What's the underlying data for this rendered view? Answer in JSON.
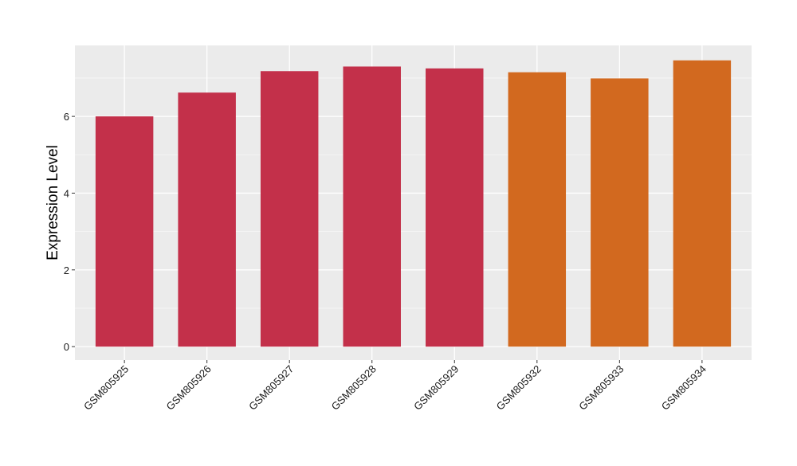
{
  "chart_data": {
    "type": "bar",
    "title": "",
    "xlabel": "",
    "ylabel": "Expression Level",
    "categories": [
      "GSM805925",
      "GSM805926",
      "GSM805927",
      "GSM805928",
      "GSM805929",
      "GSM805932",
      "GSM805933",
      "GSM805934"
    ],
    "values": [
      6.0,
      6.62,
      7.18,
      7.3,
      7.25,
      7.15,
      6.99,
      7.46
    ],
    "bar_colors": [
      "#c3304a",
      "#c3304a",
      "#c3304a",
      "#c3304a",
      "#c3304a",
      "#d2691f",
      "#d2691f",
      "#d2691f"
    ],
    "ylim": [
      -0.35,
      7.85
    ],
    "yticks": [
      0,
      2,
      4,
      6
    ],
    "ytick_labels": [
      "0",
      "2",
      "4",
      "6"
    ],
    "grid": true,
    "panel_background": "#ebebeb",
    "legend": null
  }
}
